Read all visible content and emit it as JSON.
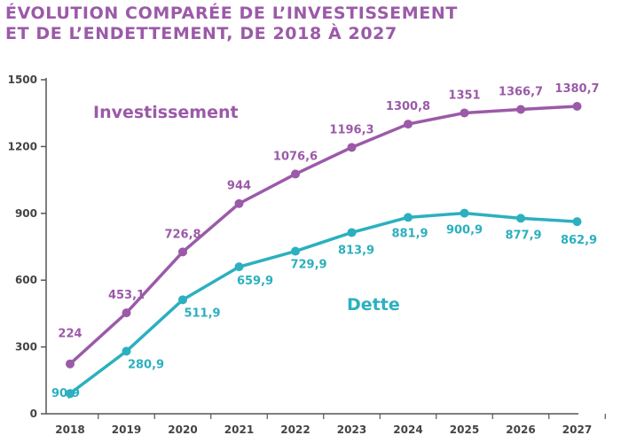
{
  "title_lines": [
    "ÉVOLUTION COMPARÉE DE L’INVESTISSEMENT",
    "ET DE L’ENDETTEMENT, DE 2018 À 2027"
  ],
  "chart_data": {
    "type": "line",
    "title": "ÉVOLUTION COMPARÉE DE L’INVESTISSEMENT ET DE L’ENDETTEMENT, DE 2018 À 2027",
    "x": [
      "2018",
      "2019",
      "2020",
      "2021",
      "2022",
      "2023",
      "2024",
      "2025",
      "2026",
      "2027"
    ],
    "ylim": [
      0,
      1500
    ],
    "yticks": [
      "0",
      "300",
      "600",
      "900",
      "1200",
      "1500"
    ],
    "grid": false,
    "series": [
      {
        "name": "Investissement",
        "color": "#9b5aa8",
        "values": [
          224,
          453.1,
          726.8,
          944,
          1076.6,
          1196.3,
          1300.8,
          1351,
          1366.7,
          1380.7
        ],
        "labels": [
          "224",
          "453,1",
          "726,8",
          "944",
          "1076,6",
          "1196,3",
          "1300,8",
          "1351",
          "1366,7",
          "1380,7"
        ]
      },
      {
        "name": "Dette",
        "color": "#2bb0bf",
        "values": [
          90.9,
          280.9,
          511.9,
          659.9,
          729.9,
          813.9,
          881.9,
          900.9,
          877.9,
          862.9
        ],
        "labels": [
          "90,9",
          "280,9",
          "511,9",
          "659,9",
          "729,9",
          "813,9",
          "881,9",
          "900,9",
          "877,9",
          "862,9"
        ]
      }
    ]
  }
}
